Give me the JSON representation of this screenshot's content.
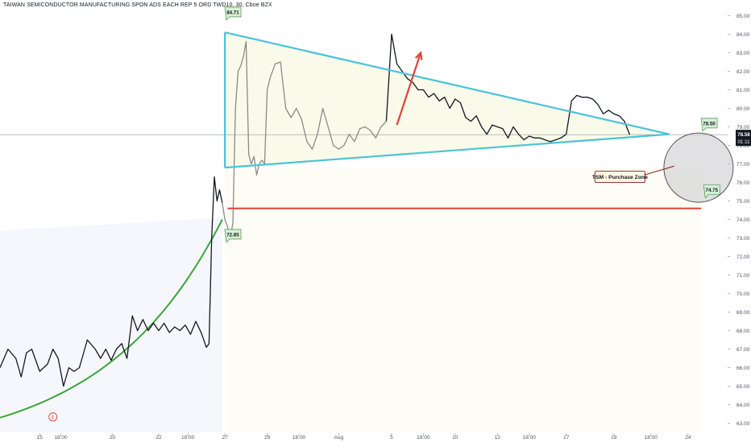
{
  "header": {
    "title": "TAIWAN SEMICONDUCTOR MANUFACTURING SPON ADS EACH REP 5 ORD TWD10, 30, Cboe BZX"
  },
  "colors": {
    "price_line_dark": "#131722",
    "price_line_light": "#8a8a8a",
    "triangle": "#4cc3d9",
    "support": "#e0423a",
    "arrow": "#e0423a",
    "curve": "#3aa63a",
    "zone_fill": "#c9c9cc",
    "label_fill": "#d6f0d6",
    "callout_fill": "#fdf6e3",
    "axis_text": "#50535e",
    "gridline": "#f0f3fa"
  },
  "chart_data": {
    "type": "line",
    "title": "TAIWAN SEMICONDUCTOR MANUFACTURING SPON ADS EACH REP 5 ORD TWD10, 30, Cboe BZX",
    "interval": "30",
    "exchange": "Cboe BZX",
    "xlabel": "",
    "ylabel": "",
    "ylim": [
      62.5,
      85.5
    ],
    "y_axis_position": "right",
    "grid": false,
    "y_ticks": [
      "85.00",
      "84.00",
      "83.00",
      "82.00",
      "81.00",
      "80.00",
      "79.00",
      "78.00",
      "77.00",
      "76.00",
      "75.00",
      "74.00",
      "73.00",
      "72.00",
      "71.00",
      "70.00",
      "69.00",
      "68.00",
      "67.00",
      "66.00",
      "65.00",
      "64.00",
      "63.00"
    ],
    "x_tick_labels": [
      "15",
      "18:00",
      "20",
      "22",
      "18:00",
      "27",
      "29",
      "18:00",
      "Aug",
      "5",
      "18:00",
      "10",
      "12",
      "18:00",
      "17",
      "19",
      "18:00",
      "24"
    ],
    "x_ticks_t": [
      15,
      23,
      42.5,
      60,
      71,
      85,
      101,
      113,
      128,
      148,
      160,
      172,
      188,
      200,
      214,
      232,
      246,
      260
    ],
    "x_range_t": [
      0,
      275
    ],
    "last_price": {
      "value": 78.58,
      "label": "78.58",
      "countdown": "01:11"
    },
    "series": [
      {
        "style": "dark",
        "t": [
          0,
          3,
          6,
          8,
          10,
          12,
          15,
          18,
          20,
          22,
          24,
          26,
          28,
          30,
          33,
          36,
          38,
          40,
          42,
          44,
          46,
          48,
          50,
          52,
          54,
          56,
          58,
          60,
          62,
          64,
          66,
          68,
          70,
          72,
          74,
          76,
          78,
          79,
          80,
          81,
          82,
          83,
          84
        ],
        "y": [
          66.0,
          67.0,
          66.5,
          65.5,
          66.8,
          67.0,
          65.8,
          66.2,
          67.0,
          66.5,
          65.0,
          66.0,
          65.8,
          66.0,
          67.5,
          67.0,
          66.5,
          67.0,
          66.4,
          67.0,
          67.3,
          66.5,
          68.8,
          68.0,
          68.6,
          68.0,
          68.4,
          68.0,
          68.4,
          67.9,
          68.2,
          68.0,
          68.3,
          67.8,
          68.5,
          67.9,
          67.1,
          67.3,
          73.0,
          76.3,
          75.0,
          75.6,
          74.9
        ]
      },
      {
        "style": "light",
        "t": [
          84,
          85,
          86,
          87,
          88,
          89,
          90,
          91,
          92,
          93,
          94,
          95,
          96,
          97,
          98,
          99,
          100,
          101,
          102,
          104,
          106,
          108,
          110,
          112,
          114,
          116,
          118,
          120,
          122,
          124,
          126,
          128,
          130,
          132,
          134,
          136,
          138,
          140,
          142,
          144,
          146
        ],
        "y": [
          74.9,
          74.0,
          73.6,
          73.0,
          73.8,
          80.0,
          82.0,
          82.3,
          82.8,
          83.6,
          77.5,
          77.0,
          77.4,
          76.4,
          77.0,
          77.2,
          77.0,
          81.0,
          81.6,
          82.4,
          82.5,
          80.0,
          79.5,
          80.0,
          79.4,
          78.2,
          77.8,
          78.6,
          80.0,
          79.0,
          78.0,
          77.8,
          78.0,
          78.6,
          78.2,
          78.9,
          79.0,
          78.8,
          78.4,
          79.0,
          79.3
        ]
      },
      {
        "style": "dark",
        "t": [
          146,
          148,
          150,
          152,
          154,
          156,
          158,
          160,
          162,
          164,
          166,
          168,
          170,
          172,
          174,
          176,
          178,
          180,
          182,
          184,
          186,
          188,
          190,
          192,
          194,
          196,
          198,
          200,
          202,
          204,
          206,
          208,
          210,
          212,
          214,
          216,
          218,
          220,
          222,
          224,
          226,
          228,
          230,
          232,
          234,
          236,
          238
        ],
        "y": [
          79.3,
          84.0,
          82.4,
          82.0,
          81.6,
          81.4,
          81.0,
          81.0,
          80.6,
          80.8,
          80.4,
          80.6,
          80.0,
          80.5,
          80.3,
          79.5,
          79.3,
          79.6,
          79.0,
          78.6,
          79.1,
          79.0,
          78.9,
          78.4,
          79.0,
          78.6,
          78.3,
          78.5,
          78.4,
          78.4,
          78.3,
          78.2,
          78.3,
          78.4,
          78.6,
          80.4,
          80.7,
          80.6,
          80.6,
          80.5,
          80.2,
          79.7,
          79.9,
          79.7,
          79.6,
          79.3,
          78.58
        ]
      }
    ],
    "annotations": {
      "triangle_upper": {
        "t": [
          85,
          253
        ],
        "y": [
          84.1,
          78.6
        ]
      },
      "triangle_lower": {
        "t": [
          85,
          253
        ],
        "y": [
          76.8,
          78.6
        ]
      },
      "triangle_left": {
        "t": [
          85,
          85
        ],
        "y": [
          84.1,
          76.8
        ]
      },
      "support_line": {
        "t": [
          86,
          265
        ],
        "y": [
          74.6,
          74.6
        ],
        "label": "74.75"
      },
      "projection_arrow": {
        "t": [
          150,
          159
        ],
        "y": [
          79.1,
          83.0
        ]
      },
      "exponential_curve": {
        "t": [
          0,
          84
        ]
      },
      "labels": [
        {
          "text": "84.71",
          "t": 88,
          "y": 85.2
        },
        {
          "text": "72.85",
          "t": 88,
          "y": 73.2
        },
        {
          "text": "78.50",
          "t": 268,
          "y": 79.2
        },
        {
          "text": "74.75",
          "t": 269,
          "y": 75.6
        }
      ],
      "callout": {
        "text": "TSM - Purchase Zone",
        "t": 234,
        "y": 76.3
      },
      "zone_circle": {
        "t": 264,
        "y": 76.8
      },
      "event_marker": {
        "text": "E",
        "t": 20,
        "y": 63.3
      }
    }
  }
}
